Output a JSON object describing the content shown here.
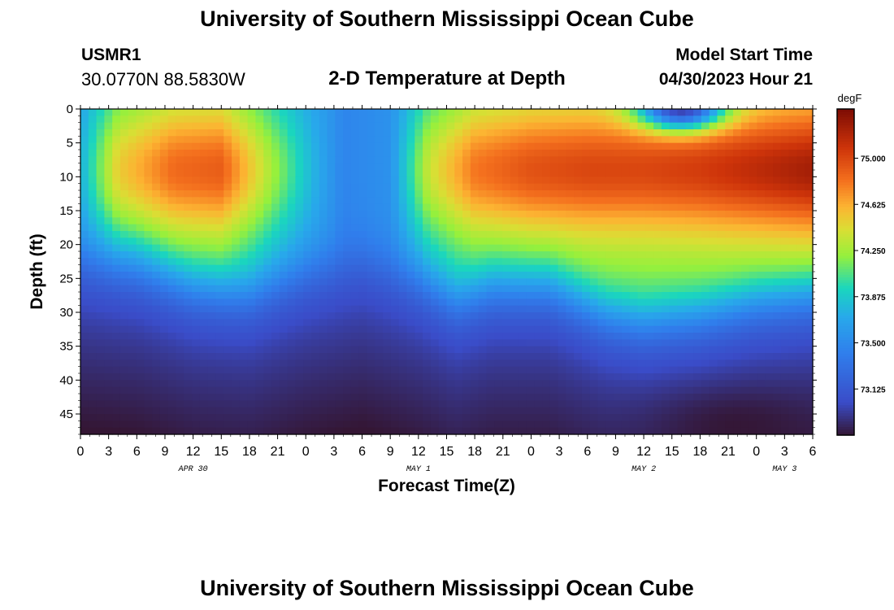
{
  "header": {
    "title": "University of Southern Mississippi Ocean Cube",
    "station_id": "USMR1",
    "coordinates": "30.0770N  88.5830W",
    "subtitle": "2-D Temperature at Depth",
    "model_start_label": "Model Start Time",
    "model_start_value": "04/30/2023 Hour 21"
  },
  "footer": {
    "title": "University of Southern Mississippi Ocean Cube"
  },
  "chart_data": {
    "type": "heatmap",
    "title": "2-D Temperature at Depth",
    "xlabel": "Forecast Time(Z)",
    "ylabel": "Depth (ft)",
    "x_ticks": [
      "0",
      "3",
      "6",
      "9",
      "12",
      "15",
      "18",
      "21",
      "0",
      "3",
      "6",
      "9",
      "12",
      "15",
      "18",
      "21",
      "0",
      "3",
      "6",
      "9",
      "12",
      "15",
      "18",
      "21",
      "0",
      "3",
      "6"
    ],
    "x_range_hours": [
      0,
      78
    ],
    "date_labels": [
      {
        "label": "APR 30",
        "hour": 12
      },
      {
        "label": "MAY 1",
        "hour": 36
      },
      {
        "label": "MAY 2",
        "hour": 60
      },
      {
        "label": "MAY 3",
        "hour": 75
      }
    ],
    "y_ticks": [
      0,
      5,
      10,
      15,
      20,
      25,
      30,
      35,
      40,
      45
    ],
    "y_range_ft": [
      0,
      48
    ],
    "colorbar": {
      "unit": "degF",
      "ticks": [
        73.125,
        73.5,
        73.875,
        74.25,
        74.625,
        75.0
      ],
      "tick_labels": [
        "73.125",
        "73.500",
        "73.875",
        "74.250",
        "74.625",
        "75.000"
      ],
      "range": [
        72.75,
        75.4
      ]
    },
    "thermocline_depth_ft": [
      {
        "hour": 0,
        "depth": 22
      },
      {
        "hour": 6,
        "depth": 23
      },
      {
        "hour": 12,
        "depth": 26
      },
      {
        "hour": 18,
        "depth": 27
      },
      {
        "hour": 24,
        "depth": 24
      },
      {
        "hour": 30,
        "depth": 22
      },
      {
        "hour": 36,
        "depth": 25
      },
      {
        "hour": 40,
        "depth": 28
      },
      {
        "hour": 44,
        "depth": 26
      },
      {
        "hour": 50,
        "depth": 26
      },
      {
        "hour": 56,
        "depth": 30
      },
      {
        "hour": 60,
        "depth": 31
      },
      {
        "hour": 66,
        "depth": 30
      },
      {
        "hour": 72,
        "depth": 28
      },
      {
        "hour": 78,
        "depth": 27
      }
    ],
    "warm_layer_max_degF": [
      {
        "hour": 0,
        "value": 73.75
      },
      {
        "hour": 4,
        "value": 74.5
      },
      {
        "hour": 10,
        "value": 74.85
      },
      {
        "hour": 15,
        "value": 74.9
      },
      {
        "hour": 20,
        "value": 74.3
      },
      {
        "hour": 24,
        "value": 73.85
      },
      {
        "hour": 28,
        "value": 73.45
      },
      {
        "hour": 33,
        "value": 73.55
      },
      {
        "hour": 37,
        "value": 74.35
      },
      {
        "hour": 42,
        "value": 74.8
      },
      {
        "hour": 48,
        "value": 74.95
      },
      {
        "hour": 54,
        "value": 75.0
      },
      {
        "hour": 60,
        "value": 75.0
      },
      {
        "hour": 66,
        "value": 75.05
      },
      {
        "hour": 72,
        "value": 75.15
      },
      {
        "hour": 78,
        "value": 75.25
      }
    ],
    "cool_surface_patch": {
      "hour": 64,
      "depth": 0,
      "value": 73.3
    },
    "cold_bottom_pool": {
      "hour": 70,
      "depth": 47,
      "value": 72.75
    }
  }
}
